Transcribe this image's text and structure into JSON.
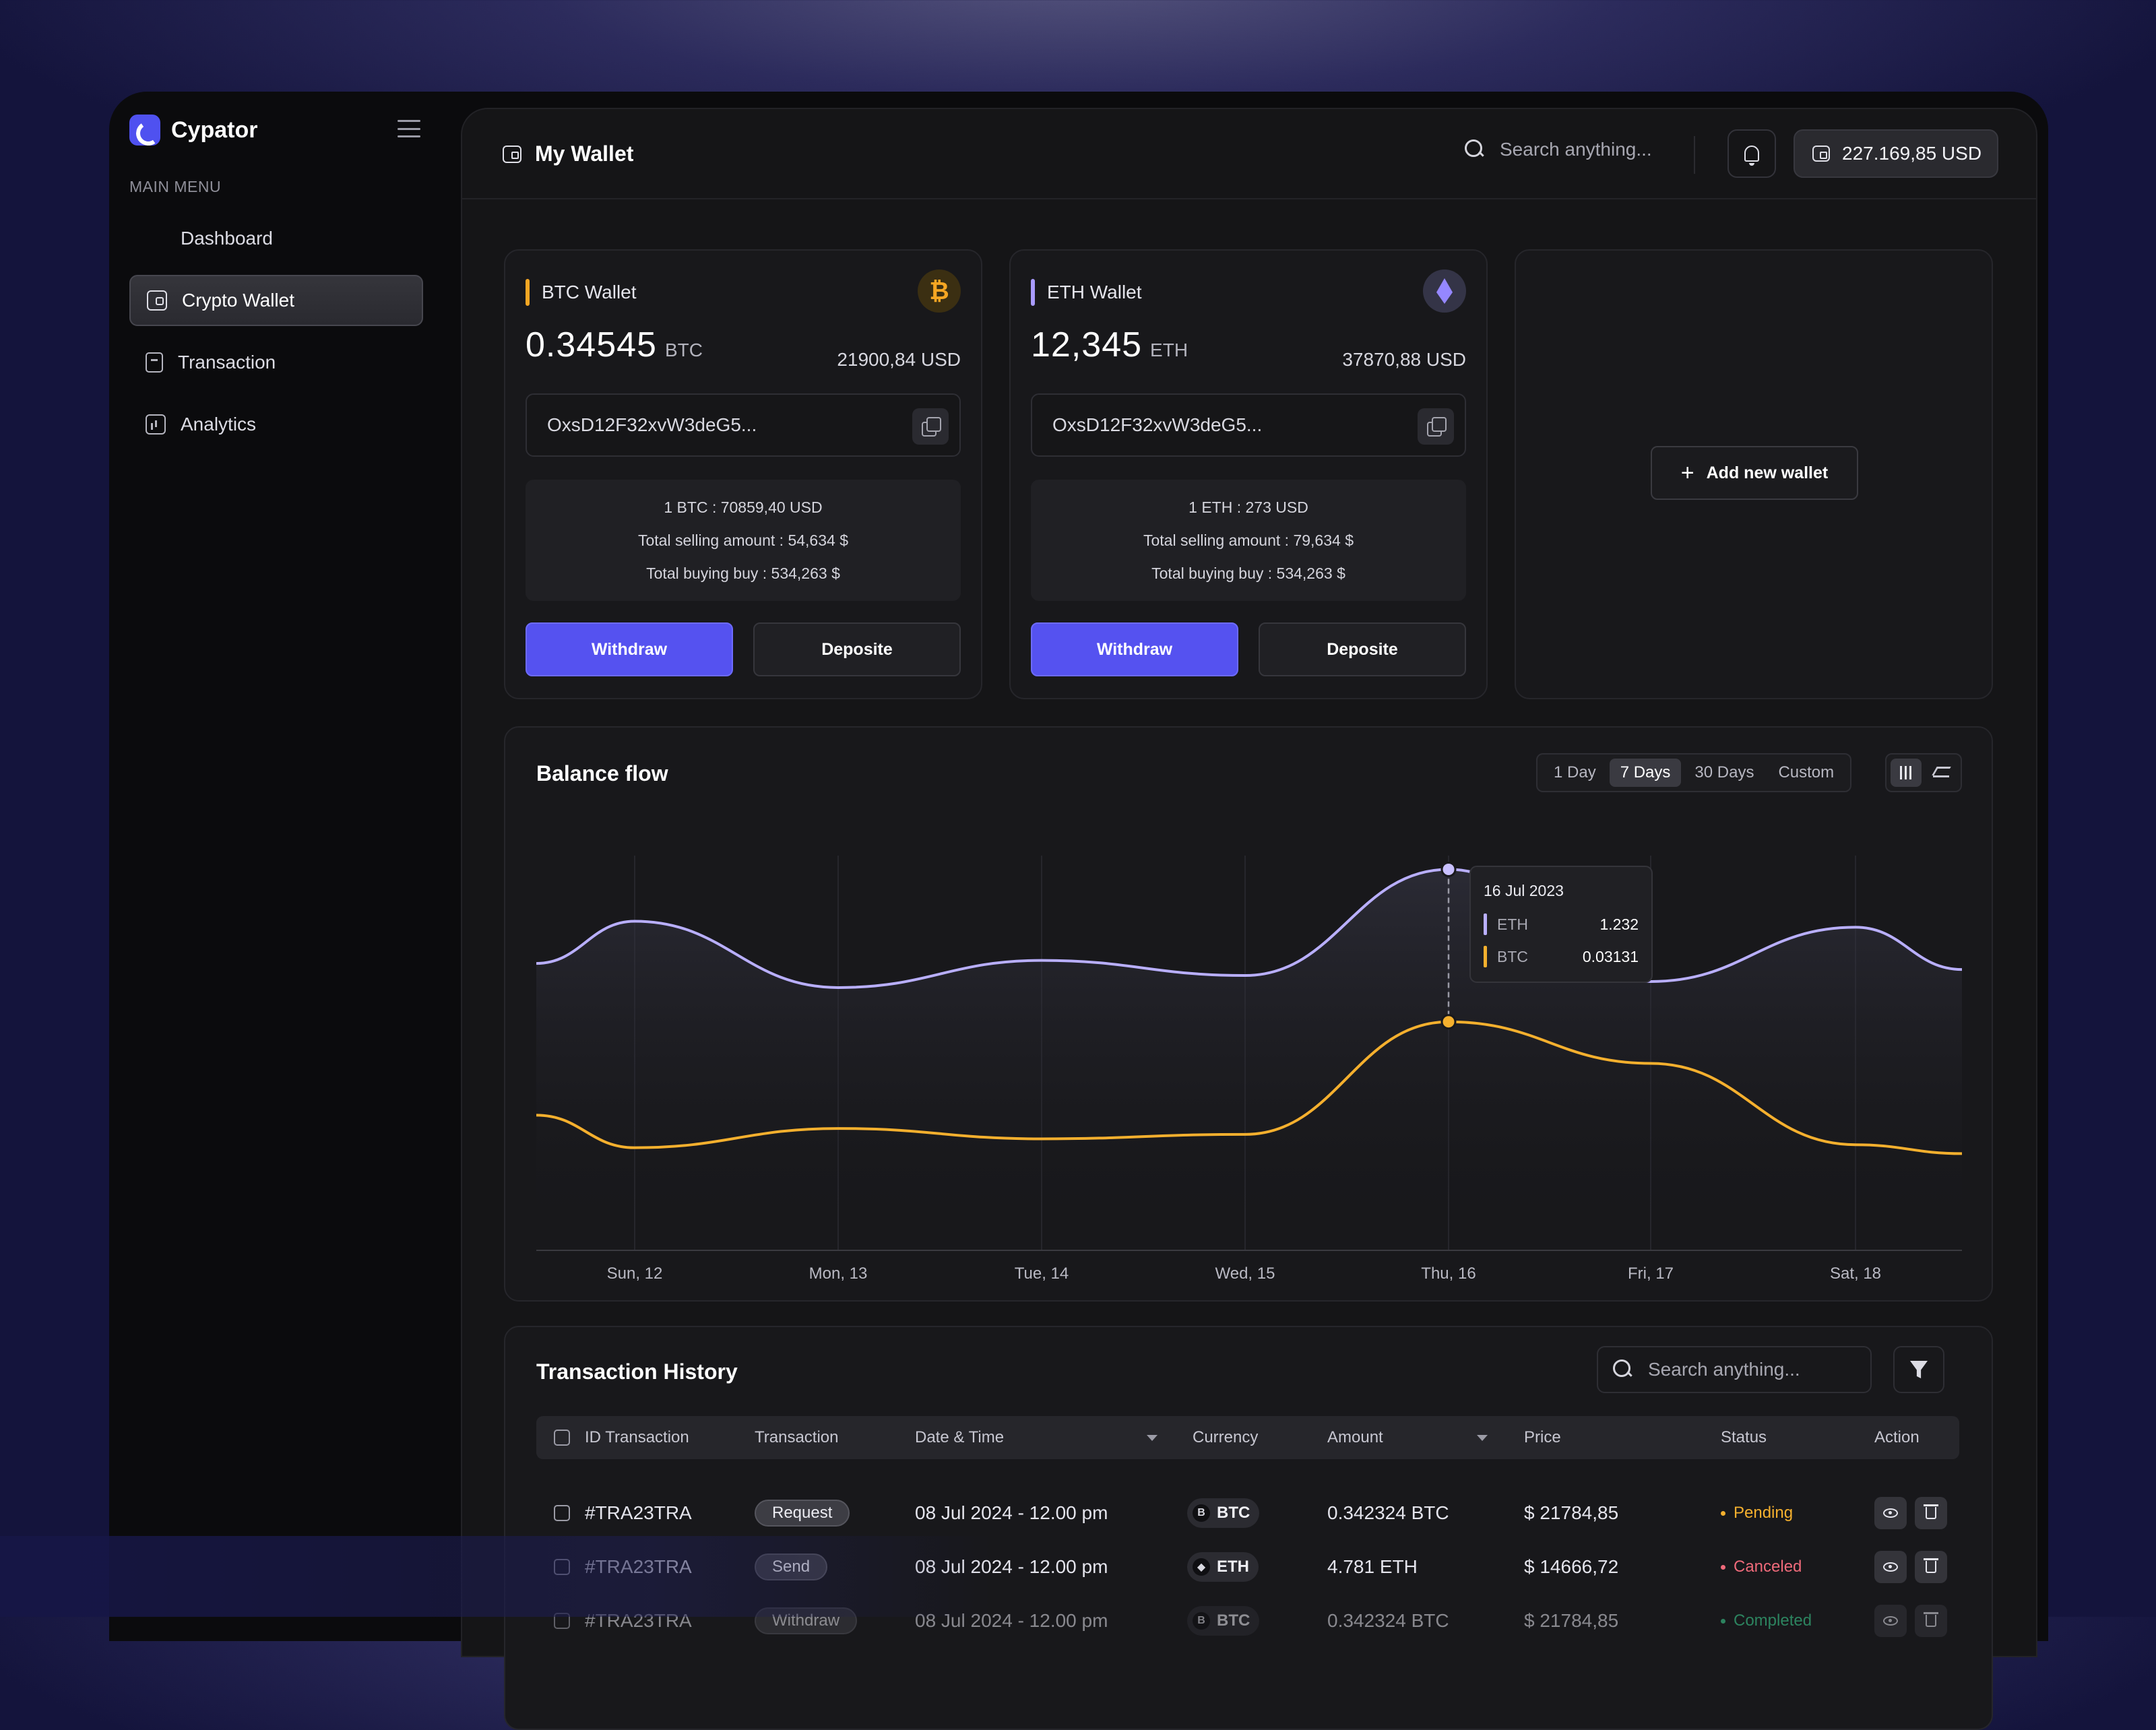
{
  "app": {
    "name": "Cypator"
  },
  "sidebar": {
    "menu_label": "MAIN MENU",
    "items": [
      {
        "label": "Dashboard",
        "icon": "grid-icon",
        "active": false
      },
      {
        "label": "Crypto Wallet",
        "icon": "wallet-icon",
        "active": true
      },
      {
        "label": "Transaction",
        "icon": "receipt-icon",
        "active": false
      },
      {
        "label": "Analytics",
        "icon": "chart-icon",
        "active": false
      }
    ]
  },
  "header": {
    "title": "My Wallet",
    "search_placeholder": "Search anything...",
    "balance": "227.169,85 USD"
  },
  "wallets": [
    {
      "name": "BTC Wallet",
      "accent": "#f5a623",
      "amount": "0.34545",
      "unit": "BTC",
      "usd": "21900,84 USD",
      "address": "OxsD12F32xvW3deG5...",
      "rate": "1 BTC : 70859,40 USD",
      "selling": "Total selling amount : 54,634 $",
      "buying": "Total buying buy : 534,263 $",
      "withdraw_label": "Withdraw",
      "deposit_label": "Deposite"
    },
    {
      "name": "ETH Wallet",
      "accent": "#a99bff",
      "amount": "12,345",
      "unit": "ETH",
      "usd": "37870,88 USD",
      "address": "OxsD12F32xvW3deG5...",
      "rate": "1 ETH : 273 USD",
      "selling": "Total selling amount : 79,634 $",
      "buying": "Total buying buy : 534,263 $",
      "withdraw_label": "Withdraw",
      "deposit_label": "Deposite"
    }
  ],
  "add_wallet": {
    "label": "Add new wallet"
  },
  "balance_flow": {
    "title": "Balance flow",
    "ranges": [
      "1 Day",
      "7 Days",
      "30 Days",
      "Custom"
    ],
    "active_range": "7 Days"
  },
  "chart_data": {
    "type": "line",
    "title": "Balance flow",
    "x": [
      "Sun, 12",
      "Mon, 13",
      "Tue, 14",
      "Wed, 15",
      "Thu, 16",
      "Fri, 17",
      "Sat, 18"
    ],
    "series": [
      {
        "name": "ETH",
        "color": "#b9afff",
        "start": 0.92,
        "values": [
          1.06,
          0.84,
          0.93,
          0.88,
          1.232,
          0.86,
          1.04
        ],
        "end": 0.9
      },
      {
        "name": "BTC",
        "color": "#f5b02e",
        "start": 0.025,
        "values": [
          0.0228,
          0.0241,
          0.0234,
          0.0237,
          0.03131,
          0.0285,
          0.023
        ],
        "end": 0.0224
      }
    ],
    "ylim": [
      0.0,
      1.3
    ],
    "btc_scale_ylim": [
      0.0165,
      0.043
    ],
    "grid": "vertical",
    "tooltip": {
      "date": "16 Jul 2023",
      "eth": "1.232",
      "btc": "0.03131"
    }
  },
  "transactions": {
    "title": "Transaction History",
    "search_placeholder": "Search anything...",
    "columns": [
      "ID Transaction",
      "Transaction",
      "Date & Time",
      "Currency",
      "Amount",
      "Price",
      "Status",
      "Action"
    ],
    "rows": [
      {
        "id": "#TRA23TRA",
        "type": "Request",
        "datetime": "08 Jul 2024 - 12.00 pm",
        "currency": "BTC",
        "symbol": "B",
        "amount": "0.342324 BTC",
        "price": "$ 21784,85",
        "status": "Pending",
        "status_color": "#f5b02e"
      },
      {
        "id": "#TRA23TRA",
        "type": "Send",
        "datetime": "08 Jul 2024 - 12.00 pm",
        "currency": "ETH",
        "symbol": "◆",
        "amount": "4.781 ETH",
        "price": "$ 14666,72",
        "status": "Canceled",
        "status_color": "#ef6a7a"
      },
      {
        "id": "#TRA23TRA",
        "type": "Withdraw",
        "datetime": "08 Jul 2024 - 12.00 pm",
        "currency": "BTC",
        "symbol": "B",
        "amount": "0.342324 BTC",
        "price": "$ 21784,85",
        "status": "Completed",
        "status_color": "#3ddc97"
      }
    ]
  }
}
